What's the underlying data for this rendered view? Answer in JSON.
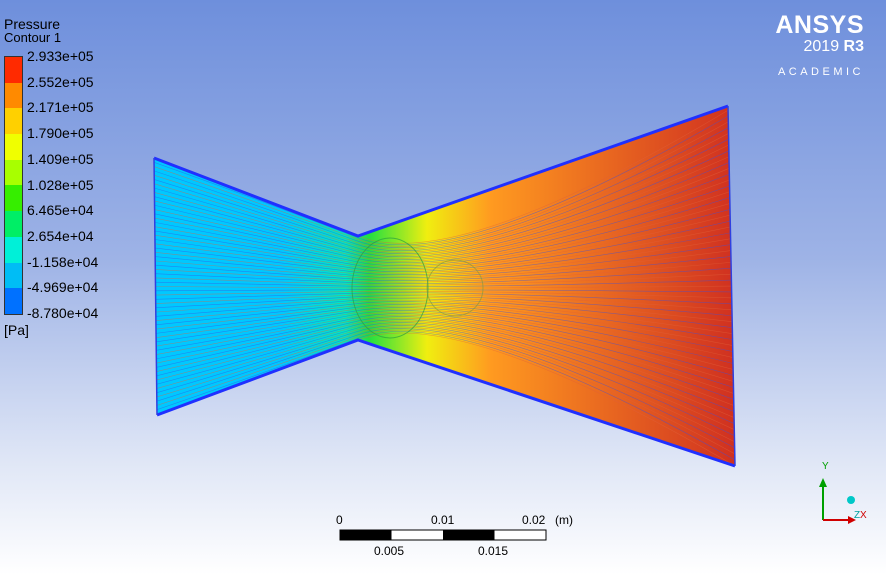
{
  "legend": {
    "variable": "Pressure",
    "contour": "Contour 1",
    "unit": "[Pa]",
    "values": [
      "2.933e+05",
      "2.552e+05",
      "2.171e+05",
      "1.790e+05",
      "1.409e+05",
      "1.028e+05",
      "6.465e+04",
      "2.654e+04",
      "-1.158e+04",
      "-4.969e+04",
      "-8.780e+04"
    ],
    "colors": [
      "#ff2a00",
      "#ff8a00",
      "#ffd000",
      "#f0ff00",
      "#a8ff00",
      "#36ee00",
      "#00ee66",
      "#00f0d8",
      "#00bdf5",
      "#0071ff",
      "#0021ee"
    ]
  },
  "logo": {
    "brand": "ANSYS",
    "version": "2019",
    "release": "R3",
    "edition": "ACADEMIC"
  },
  "scale": {
    "top_labels": [
      "0",
      "0.01",
      "0.02",
      "(m)"
    ],
    "bottom_labels": [
      "0.005",
      "0.015"
    ]
  },
  "axis": {
    "y_label": "Y",
    "x_label": "X",
    "z_label": "Z",
    "colors": {
      "y": "#00a000",
      "x": "#d00000",
      "z": "#00c0c0"
    }
  },
  "contour_field": {
    "colors": {
      "inlet": "#00c8ff",
      "throat": "#22e040",
      "mid": "#f0ee10",
      "outlet": "#d03020",
      "wall": "#2a3aff"
    }
  }
}
